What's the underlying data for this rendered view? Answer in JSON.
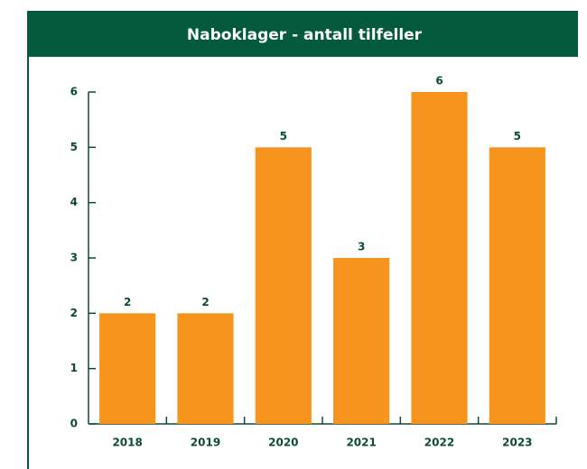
{
  "chart_data": {
    "type": "bar",
    "title": "Naboklager - antall tilfeller",
    "categories": [
      "2018",
      "2019",
      "2020",
      "2021",
      "2022",
      "2023"
    ],
    "values": [
      2,
      2,
      5,
      3,
      6,
      5
    ],
    "color": "#f7941d",
    "ylim": [
      0,
      6
    ],
    "yticks": [
      0,
      1,
      2,
      3,
      4,
      5,
      6
    ]
  }
}
